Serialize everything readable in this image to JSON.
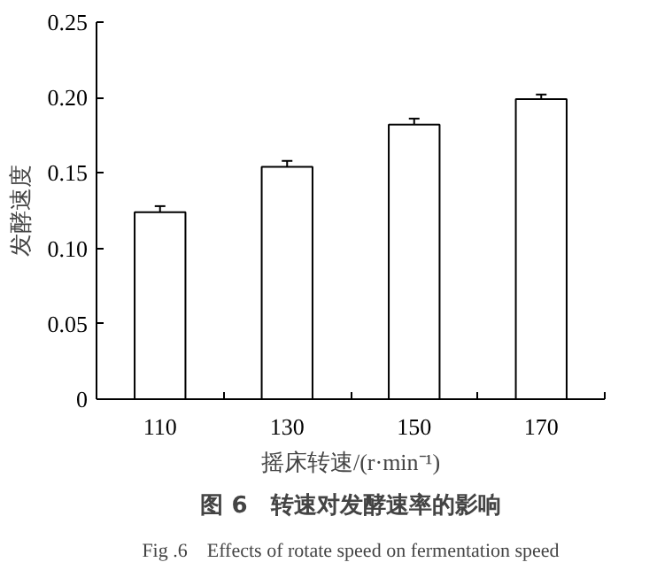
{
  "chart_data": {
    "type": "bar",
    "title": "图 6　转速对发酵速率的影响",
    "subtitle": "Fig .6　Effects of rotate speed on fermentation speed",
    "xlabel": "摇床转速/(r·min⁻¹)",
    "ylabel": "发酵速度",
    "categories": [
      "110",
      "130",
      "150",
      "170"
    ],
    "values": [
      0.124,
      0.154,
      0.182,
      0.199
    ],
    "errors": [
      0.004,
      0.004,
      0.004,
      0.003
    ],
    "color": "#ffffff",
    "ylim": [
      0,
      0.25
    ],
    "yticks": [
      0,
      {
        "value": 0.05,
        "label": "0.05"
      },
      {
        "value": 0.1,
        "label": "0.10"
      },
      {
        "value": 0.15,
        "label": "0.15"
      },
      {
        "value": 0.2,
        "label": "0.20"
      },
      {
        "value": 0.25,
        "label": "0.25"
      }
    ],
    "grid": false
  }
}
